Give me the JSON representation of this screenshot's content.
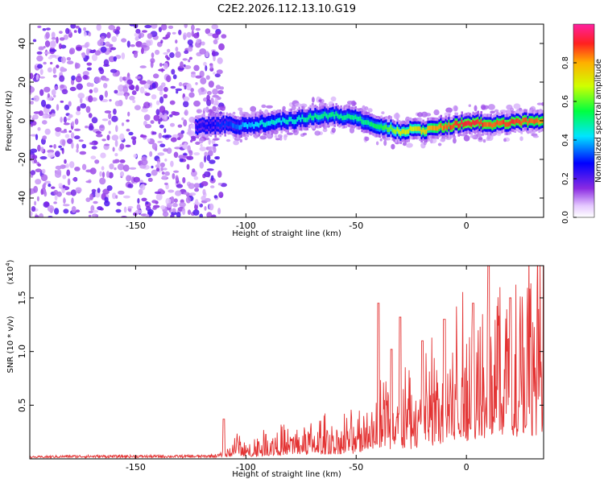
{
  "title": "C2E2.2026.112.13.10.G19",
  "colors": {
    "spectrogram_low": "#e3d2fb",
    "spectrogram_mid": "#7a22f0",
    "snr_line": "#e33232",
    "axis": "#000000"
  },
  "chart_data": [
    {
      "type": "heatmap",
      "title": "C2E2.2026.112.13.10.G19",
      "xlabel": "Height of straight line (km)",
      "ylabel": "Frequency (Hz)",
      "xlim": [
        -198,
        35
      ],
      "ylim": [
        -50,
        50
      ],
      "x_ticks": [
        "-150",
        "-100",
        "-50",
        "0"
      ],
      "y_ticks": [
        "-40",
        "-20",
        "0",
        "20",
        "40"
      ],
      "x_tick_values": [
        -150,
        -100,
        -50,
        0
      ],
      "y_tick_values": [
        -40,
        -20,
        0,
        20,
        40
      ],
      "colorbar": {
        "label": "Normalized spectral amplitude",
        "range": [
          0,
          1
        ],
        "ticks": [
          "0.0",
          "0.2",
          "0.4",
          "0.6",
          "0.8"
        ],
        "tick_values": [
          0.0,
          0.2,
          0.4,
          0.6,
          0.8
        ],
        "colormap": "rainbow (white-violet-blue-cyan-green-yellow-red-magenta)"
      },
      "noise_region_x": [
        -198,
        -110
      ],
      "ridge": {
        "x": [
          -123,
          -110,
          -100,
          -90,
          -80,
          -70,
          -60,
          -50,
          -45,
          -40,
          -35,
          -30,
          -25,
          -20,
          -15,
          -10,
          -5,
          0,
          5,
          10,
          20,
          30,
          35
        ],
        "freq": [
          -3,
          -2,
          -3,
          -1,
          0,
          2,
          3,
          1,
          -1,
          -3,
          -4,
          -6,
          -4,
          -5,
          -4,
          -3,
          -2,
          -1,
          -1,
          -2,
          -1,
          0,
          0
        ],
        "amplitude": [
          0.25,
          0.3,
          0.4,
          0.45,
          0.45,
          0.5,
          0.5,
          0.5,
          0.5,
          0.55,
          0.6,
          0.7,
          0.7,
          0.75,
          0.8,
          0.85,
          0.9,
          0.9,
          0.9,
          0.85,
          0.9,
          0.85,
          0.8
        ]
      }
    },
    {
      "type": "line",
      "xlabel": "Height of straight line (km)",
      "ylabel": "SNR (10 * v/v)",
      "y_multiplier_label": "(x10",
      "y_multiplier_exp": "4",
      "y_multiplier_close": ")",
      "xlim": [
        -198,
        35
      ],
      "ylim": [
        0,
        1.8
      ],
      "x_ticks": [
        "-150",
        "-100",
        "-50",
        "0"
      ],
      "y_ticks": [
        "0.5",
        "1.0",
        "1.5"
      ],
      "x_tick_values": [
        -150,
        -100,
        -50,
        0
      ],
      "y_tick_values": [
        0.5,
        1.0,
        1.5
      ],
      "series": [
        {
          "x": [
            -198,
            -180,
            -160,
            -140,
            -120,
            -112,
            -108,
            -104,
            -100,
            -90,
            -80,
            -70,
            -60,
            -50,
            -45,
            -40,
            -35,
            -30,
            -25,
            -20,
            -15,
            -10,
            -5,
            0,
            5,
            10,
            15,
            20,
            25,
            30,
            35
          ],
          "envelope": [
            0.02,
            0.03,
            0.03,
            0.03,
            0.03,
            0.04,
            0.1,
            0.2,
            0.12,
            0.2,
            0.22,
            0.25,
            0.28,
            0.3,
            0.5,
            0.7,
            0.6,
            0.6,
            0.6,
            0.7,
            0.8,
            0.95,
            1.0,
            1.1,
            1.2,
            1.3,
            1.3,
            1.35,
            1.4,
            1.45,
            1.5
          ],
          "spikes_x": [
            -110,
            -40,
            -34,
            -30,
            -20,
            -10,
            3,
            10,
            20
          ],
          "spikes_y": [
            0.37,
            1.45,
            1.02,
            1.32,
            1.1,
            1.3,
            1.45,
            1.82,
            1.5
          ]
        }
      ]
    }
  ]
}
